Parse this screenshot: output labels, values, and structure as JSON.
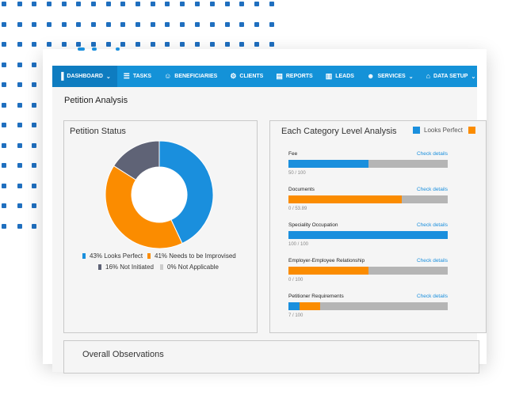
{
  "nav": {
    "items": [
      {
        "label": "DASHBOARD",
        "icon": "bar-chart-icon",
        "caret": true,
        "active": true
      },
      {
        "label": "TASKS",
        "icon": "tasks-icon",
        "caret": false,
        "active": false
      },
      {
        "label": "BENEFICIARIES",
        "icon": "beneficiary-icon",
        "caret": false,
        "active": false
      },
      {
        "label": "CLIENTS",
        "icon": "clients-icon",
        "caret": false,
        "active": false
      },
      {
        "label": "REPORTS",
        "icon": "reports-icon",
        "caret": false,
        "active": false
      },
      {
        "label": "LEADS",
        "icon": "leads-icon",
        "caret": false,
        "active": false
      },
      {
        "label": "SERVICES",
        "icon": "services-icon",
        "caret": true,
        "active": false
      },
      {
        "label": "DATA SETUP",
        "icon": "home-icon",
        "caret": true,
        "active": false
      }
    ]
  },
  "page": {
    "title": "Petition Analysis"
  },
  "petition_status": {
    "title": "Petition Status",
    "legend": [
      {
        "label": "43% Looks Perfect",
        "color": "#1a8fdd"
      },
      {
        "label": "41% Needs to be Improvised",
        "color": "#fb8c00"
      },
      {
        "label": "16% Not Initiated",
        "color": "#5f6376"
      },
      {
        "label": "0% Not Applicable",
        "color": "#cccccc"
      }
    ]
  },
  "category_analysis": {
    "title": "Each Category Level Analysis",
    "legend": [
      {
        "label": "Looks Perfect",
        "color": "#1a8fdd"
      },
      {
        "label": "",
        "color": "#fb8c00"
      }
    ],
    "rows": [
      {
        "label": "Fee",
        "link": "Check details",
        "score": "50 / 100"
      },
      {
        "label": "Documents",
        "link": "Check details",
        "score": "0 / 53.89"
      },
      {
        "label": "Speciality Occupation",
        "link": "Check details",
        "score": "100 / 100"
      },
      {
        "label": "Employer-Employee Relationship",
        "link": "Check details",
        "score": "0 / 100"
      },
      {
        "label": "Petitioner Requirements",
        "link": "Check details",
        "score": "7 / 100"
      }
    ]
  },
  "overall": {
    "title": "Overall Observations"
  },
  "chart_data": [
    {
      "type": "pie",
      "title": "Petition Status",
      "categories": [
        "Looks Perfect",
        "Needs to be Improvised",
        "Not Initiated",
        "Not Applicable"
      ],
      "values": [
        43,
        41,
        16,
        0
      ],
      "colors": [
        "#1a8fdd",
        "#fb8c00",
        "#5f6376",
        "#cccccc"
      ],
      "donut": true
    },
    {
      "type": "bar",
      "orientation": "horizontal",
      "stacked": true,
      "title": "Each Category Level Analysis",
      "categories": [
        "Fee",
        "Documents",
        "Speciality Occupation",
        "Employer-Employee Relationship",
        "Petitioner Requirements"
      ],
      "series": [
        {
          "name": "Looks Perfect",
          "color": "#1a8fdd",
          "values": [
            50,
            0,
            100,
            0,
            7
          ]
        },
        {
          "color": "#fb8c00",
          "values": [
            0,
            71,
            0,
            50,
            13
          ]
        }
      ],
      "xlim": [
        0,
        100
      ],
      "track_color": "#b5b5b5"
    }
  ]
}
